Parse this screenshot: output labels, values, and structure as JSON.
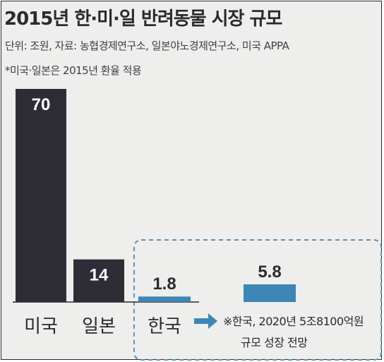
{
  "title": "2015년 한·미·일 반려동물 시장 규모",
  "source_line": "단위: 조원, 자료: 농협경제연구소, 일본야노경제연구소, 미국 APPA",
  "note_line": "*미국·일본은 2015년 환율 적용",
  "colors": {
    "dark_bar": "#2e2d36",
    "blue_bar": "#3d86b6",
    "dashed_box": "#5a93b8"
  },
  "chart_data": {
    "type": "bar",
    "title": "2015년 한·미·일 반려동물 시장 규모",
    "ylabel": "",
    "unit": "조원",
    "categories": [
      "미국",
      "일본",
      "한국"
    ],
    "values": [
      70,
      14,
      1.8
    ],
    "value_labels": [
      "70",
      "14",
      "1.8"
    ],
    "projection": {
      "value": 5.8,
      "label": "5.8",
      "annotation_lines": [
        "※한국, 2020년 5조8100억원",
        "규모 성장 전망"
      ]
    },
    "grid": false,
    "legend": "none"
  }
}
